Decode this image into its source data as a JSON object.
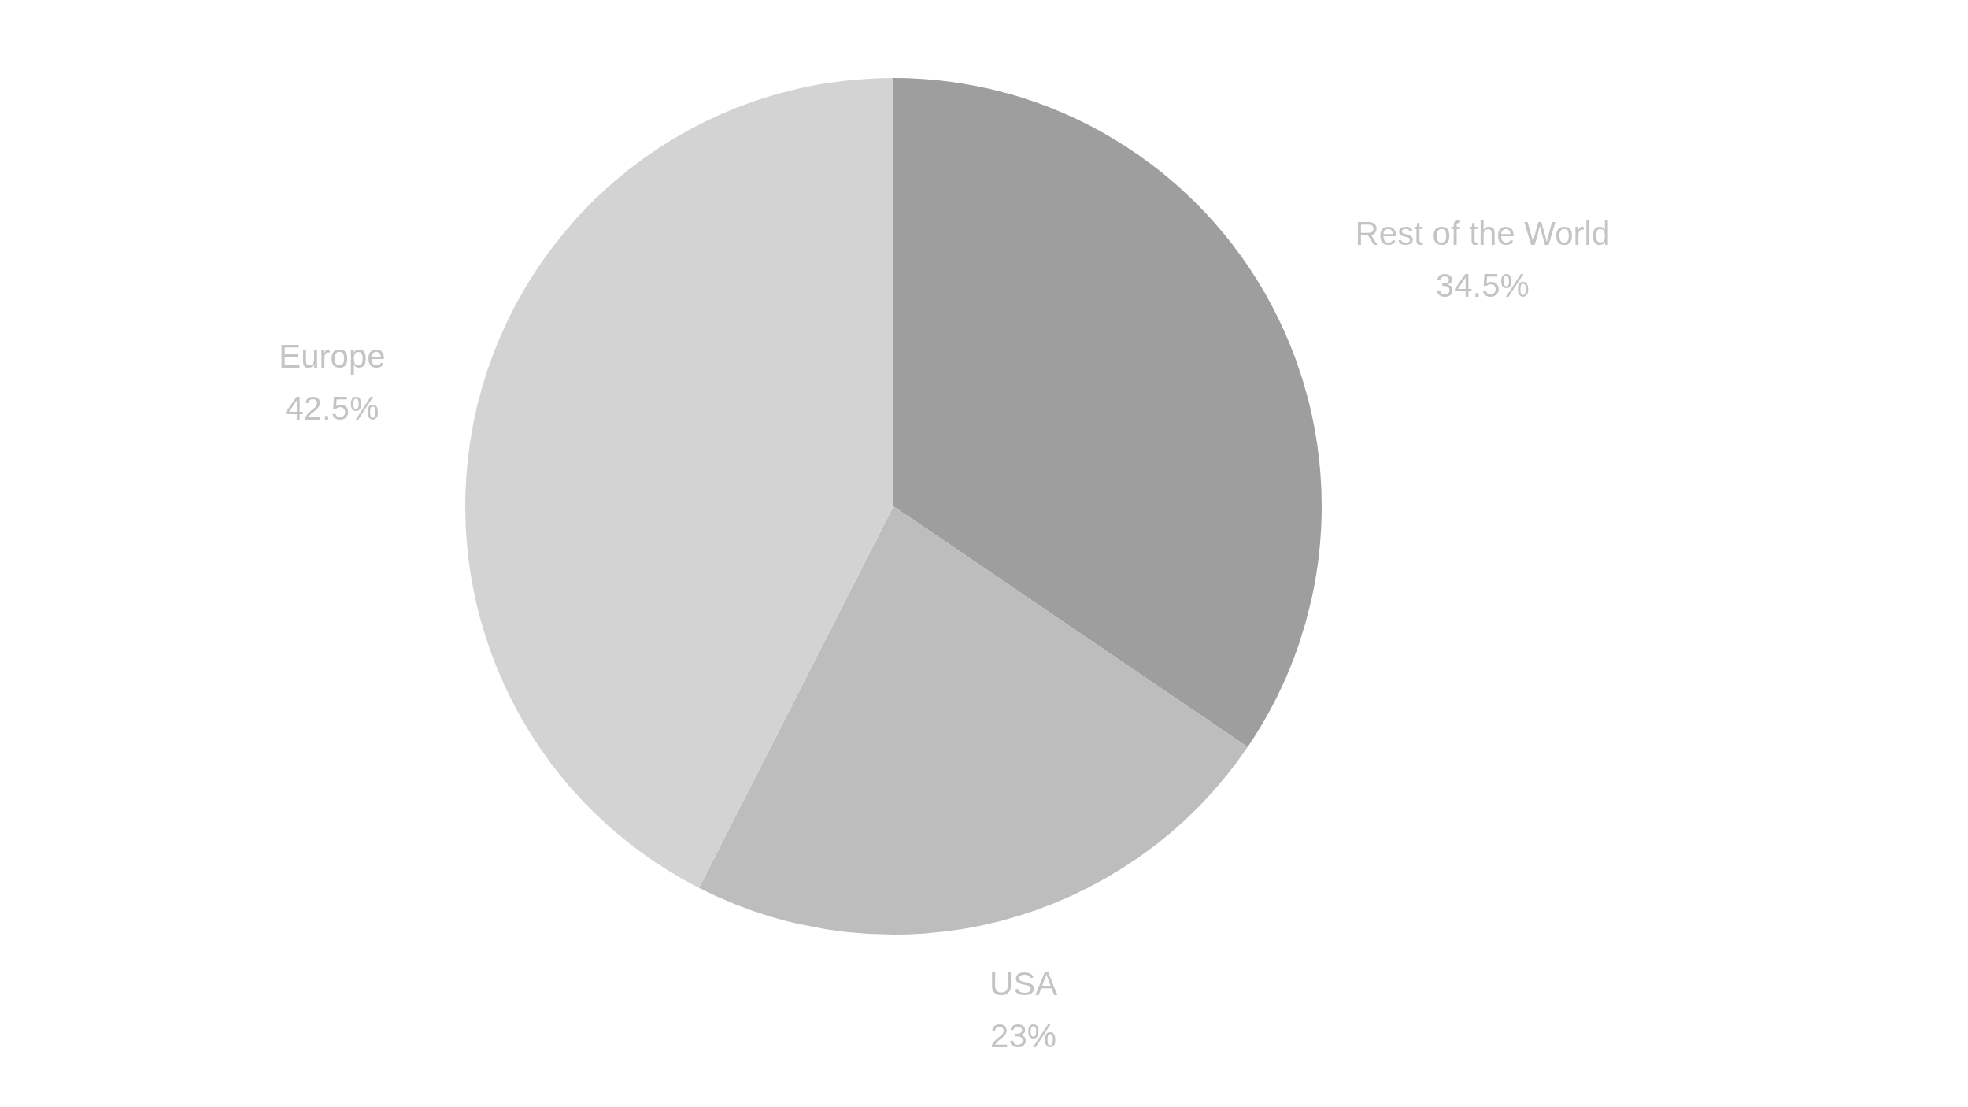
{
  "chart_data": {
    "type": "pie",
    "categories": [
      "Rest of the World",
      "USA",
      "Europe"
    ],
    "values": [
      34.5,
      23,
      42.5
    ],
    "colors": [
      "#9e9e9e",
      "#bdbdbd",
      "#d3d3d3"
    ],
    "value_labels": [
      "34.5%",
      "23%",
      "42.5%"
    ],
    "legend": false
  }
}
